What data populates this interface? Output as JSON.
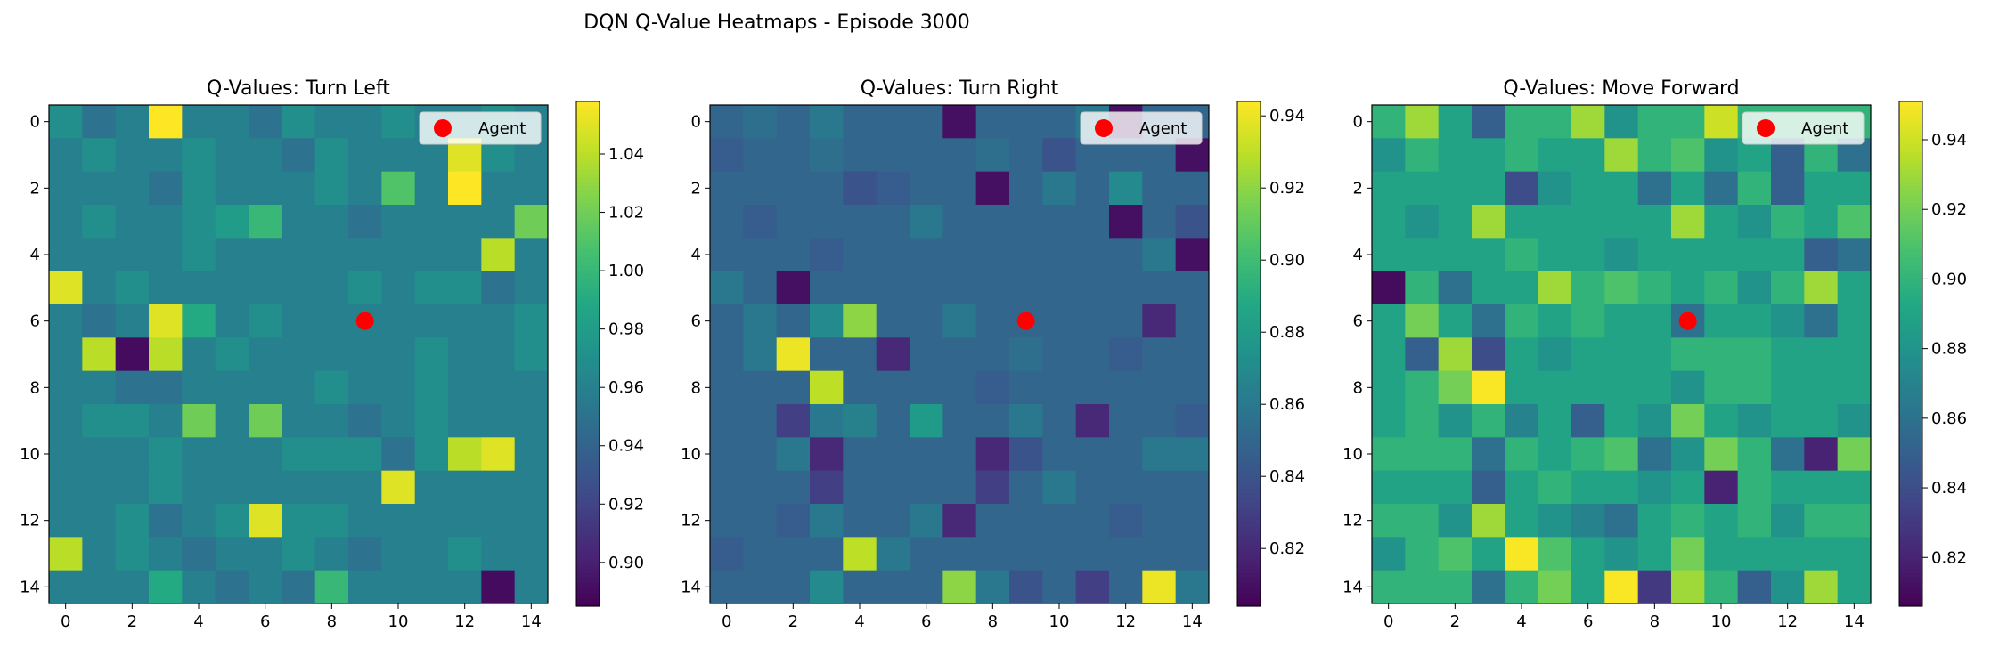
{
  "suptitle": "DQN Q-Value Heatmaps - Episode 3000",
  "chart_data": [
    {
      "type": "heatmap",
      "title": "Q-Values: Turn Left",
      "colormap": "viridis",
      "grid_size": 15,
      "x_ticks": [
        "0",
        "2",
        "4",
        "6",
        "8",
        "10",
        "12",
        "14"
      ],
      "y_ticks": [
        "0",
        "2",
        "4",
        "6",
        "8",
        "10",
        "12",
        "14"
      ],
      "vmin": 0.885,
      "vmax": 1.058,
      "colorbar_ticks": [
        "0.90",
        "0.92",
        "0.94",
        "0.96",
        "0.98",
        "1.00",
        "1.02",
        "1.04"
      ],
      "colorbar_tick_values": [
        0.9,
        0.92,
        0.94,
        0.96,
        0.98,
        1.0,
        1.02,
        1.04
      ],
      "grid": "off",
      "legend": {
        "label": "Agent",
        "placement": "upper right",
        "color": "#ff0000"
      },
      "agent": {
        "x": 9,
        "y": 6
      },
      "values": [
        [
          0.97,
          0.95,
          0.96,
          1.06,
          0.96,
          0.96,
          0.95,
          0.97,
          0.96,
          0.96,
          0.97,
          0.96,
          0.96,
          0.97,
          0.96
        ],
        [
          0.96,
          0.97,
          0.96,
          0.96,
          0.97,
          0.96,
          0.96,
          0.95,
          0.97,
          0.96,
          0.96,
          0.96,
          1.05,
          0.97,
          0.96
        ],
        [
          0.96,
          0.96,
          0.96,
          0.95,
          0.97,
          0.96,
          0.96,
          0.96,
          0.97,
          0.96,
          1.01,
          0.96,
          1.06,
          0.96,
          0.96
        ],
        [
          0.96,
          0.97,
          0.96,
          0.96,
          0.97,
          0.98,
          1.0,
          0.96,
          0.96,
          0.95,
          0.96,
          0.96,
          0.96,
          0.96,
          1.02
        ],
        [
          0.96,
          0.96,
          0.96,
          0.96,
          0.97,
          0.96,
          0.96,
          0.96,
          0.96,
          0.96,
          0.96,
          0.96,
          0.96,
          1.04,
          0.96
        ],
        [
          1.05,
          0.96,
          0.97,
          0.96,
          0.96,
          0.96,
          0.96,
          0.96,
          0.96,
          0.97,
          0.96,
          0.97,
          0.97,
          0.95,
          0.96
        ],
        [
          0.96,
          0.95,
          0.96,
          1.05,
          0.99,
          0.96,
          0.97,
          0.96,
          0.96,
          0.96,
          0.96,
          0.96,
          0.96,
          0.96,
          0.97
        ],
        [
          0.96,
          1.04,
          0.89,
          1.04,
          0.96,
          0.97,
          0.96,
          0.96,
          0.96,
          0.96,
          0.96,
          0.97,
          0.96,
          0.96,
          0.97
        ],
        [
          0.96,
          0.96,
          0.95,
          0.95,
          0.96,
          0.96,
          0.96,
          0.96,
          0.97,
          0.96,
          0.96,
          0.97,
          0.96,
          0.96,
          0.96
        ],
        [
          0.96,
          0.97,
          0.97,
          0.96,
          1.02,
          0.96,
          1.02,
          0.96,
          0.96,
          0.95,
          0.96,
          0.97,
          0.96,
          0.96,
          0.96
        ],
        [
          0.96,
          0.96,
          0.96,
          0.97,
          0.96,
          0.96,
          0.96,
          0.97,
          0.97,
          0.97,
          0.95,
          0.97,
          1.04,
          1.05,
          0.96
        ],
        [
          0.96,
          0.96,
          0.96,
          0.97,
          0.96,
          0.96,
          0.96,
          0.96,
          0.96,
          0.96,
          1.05,
          0.96,
          0.96,
          0.96,
          0.96
        ],
        [
          0.96,
          0.96,
          0.97,
          0.95,
          0.96,
          0.97,
          1.05,
          0.97,
          0.97,
          0.96,
          0.96,
          0.96,
          0.96,
          0.96,
          0.96
        ],
        [
          1.04,
          0.96,
          0.97,
          0.96,
          0.95,
          0.96,
          0.96,
          0.97,
          0.96,
          0.95,
          0.96,
          0.96,
          0.97,
          0.96,
          0.96
        ],
        [
          0.96,
          0.96,
          0.96,
          0.99,
          0.96,
          0.95,
          0.96,
          0.95,
          1.0,
          0.96,
          0.96,
          0.96,
          0.96,
          0.89,
          0.96
        ]
      ]
    },
    {
      "type": "heatmap",
      "title": "Q-Values: Turn Right",
      "colormap": "viridis",
      "grid_size": 15,
      "x_ticks": [
        "0",
        "2",
        "4",
        "6",
        "8",
        "10",
        "12",
        "14"
      ],
      "y_ticks": [
        "0",
        "2",
        "4",
        "6",
        "8",
        "10",
        "12",
        "14"
      ],
      "vmin": 0.804,
      "vmax": 0.944,
      "colorbar_ticks": [
        "0.82",
        "0.84",
        "0.86",
        "0.88",
        "0.90",
        "0.92",
        "0.94"
      ],
      "colorbar_tick_values": [
        0.82,
        0.84,
        0.86,
        0.88,
        0.9,
        0.92,
        0.94
      ],
      "grid": "off",
      "legend": {
        "label": "Agent",
        "placement": "upper right",
        "color": "#ff0000"
      },
      "agent": {
        "x": 9,
        "y": 6
      },
      "values": [
        [
          0.85,
          0.855,
          0.85,
          0.86,
          0.85,
          0.85,
          0.85,
          0.81,
          0.85,
          0.85,
          0.85,
          0.86,
          0.81,
          0.85,
          0.85
        ],
        [
          0.845,
          0.85,
          0.85,
          0.855,
          0.85,
          0.85,
          0.85,
          0.85,
          0.855,
          0.85,
          0.84,
          0.85,
          0.85,
          0.85,
          0.81
        ],
        [
          0.85,
          0.85,
          0.85,
          0.85,
          0.84,
          0.845,
          0.85,
          0.85,
          0.81,
          0.85,
          0.86,
          0.85,
          0.87,
          0.85,
          0.85
        ],
        [
          0.85,
          0.845,
          0.85,
          0.85,
          0.85,
          0.85,
          0.86,
          0.85,
          0.85,
          0.85,
          0.85,
          0.85,
          0.81,
          0.85,
          0.84
        ],
        [
          0.85,
          0.85,
          0.85,
          0.845,
          0.85,
          0.85,
          0.85,
          0.85,
          0.85,
          0.85,
          0.85,
          0.85,
          0.85,
          0.86,
          0.81
        ],
        [
          0.86,
          0.85,
          0.81,
          0.85,
          0.85,
          0.85,
          0.85,
          0.85,
          0.85,
          0.85,
          0.85,
          0.85,
          0.85,
          0.85,
          0.85
        ],
        [
          0.85,
          0.86,
          0.85,
          0.87,
          0.92,
          0.85,
          0.85,
          0.86,
          0.85,
          0.85,
          0.85,
          0.85,
          0.85,
          0.82,
          0.85
        ],
        [
          0.85,
          0.86,
          0.94,
          0.85,
          0.85,
          0.82,
          0.85,
          0.85,
          0.85,
          0.855,
          0.85,
          0.85,
          0.845,
          0.85,
          0.85
        ],
        [
          0.85,
          0.85,
          0.85,
          0.93,
          0.85,
          0.85,
          0.85,
          0.85,
          0.845,
          0.85,
          0.85,
          0.85,
          0.85,
          0.85,
          0.85
        ],
        [
          0.85,
          0.85,
          0.83,
          0.86,
          0.865,
          0.85,
          0.88,
          0.85,
          0.85,
          0.86,
          0.85,
          0.82,
          0.85,
          0.85,
          0.845
        ],
        [
          0.85,
          0.85,
          0.86,
          0.82,
          0.85,
          0.85,
          0.85,
          0.85,
          0.82,
          0.84,
          0.85,
          0.85,
          0.85,
          0.86,
          0.86
        ],
        [
          0.85,
          0.85,
          0.85,
          0.83,
          0.85,
          0.85,
          0.85,
          0.85,
          0.83,
          0.85,
          0.86,
          0.85,
          0.85,
          0.85,
          0.85
        ],
        [
          0.85,
          0.85,
          0.845,
          0.86,
          0.85,
          0.85,
          0.86,
          0.82,
          0.85,
          0.85,
          0.85,
          0.85,
          0.845,
          0.85,
          0.85
        ],
        [
          0.845,
          0.85,
          0.85,
          0.85,
          0.93,
          0.86,
          0.85,
          0.85,
          0.85,
          0.85,
          0.85,
          0.85,
          0.85,
          0.85,
          0.85
        ],
        [
          0.85,
          0.85,
          0.85,
          0.87,
          0.85,
          0.85,
          0.85,
          0.92,
          0.86,
          0.84,
          0.85,
          0.83,
          0.85,
          0.94,
          0.86
        ]
      ]
    },
    {
      "type": "heatmap",
      "title": "Q-Values: Move Forward",
      "colormap": "viridis",
      "grid_size": 15,
      "x_ticks": [
        "0",
        "2",
        "4",
        "6",
        "8",
        "10",
        "12",
        "14"
      ],
      "y_ticks": [
        "0",
        "2",
        "4",
        "6",
        "8",
        "10",
        "12",
        "14"
      ],
      "vmin": 0.806,
      "vmax": 0.951,
      "colorbar_ticks": [
        "0.82",
        "0.84",
        "0.86",
        "0.88",
        "0.90",
        "0.92",
        "0.94"
      ],
      "colorbar_tick_values": [
        0.82,
        0.84,
        0.86,
        0.88,
        0.9,
        0.92,
        0.94
      ],
      "grid": "off",
      "legend": {
        "label": "Agent",
        "placement": "upper right",
        "color": "#ff0000"
      },
      "agent": {
        "x": 9,
        "y": 6
      },
      "values": [
        [
          0.9,
          0.93,
          0.89,
          0.85,
          0.9,
          0.9,
          0.93,
          0.88,
          0.9,
          0.9,
          0.94,
          0.9,
          0.9,
          0.9,
          0.9
        ],
        [
          0.88,
          0.9,
          0.89,
          0.89,
          0.9,
          0.89,
          0.89,
          0.93,
          0.9,
          0.91,
          0.88,
          0.89,
          0.85,
          0.9,
          0.86
        ],
        [
          0.89,
          0.89,
          0.89,
          0.89,
          0.84,
          0.88,
          0.89,
          0.89,
          0.86,
          0.89,
          0.86,
          0.9,
          0.85,
          0.89,
          0.89
        ],
        [
          0.89,
          0.88,
          0.89,
          0.93,
          0.89,
          0.89,
          0.89,
          0.89,
          0.89,
          0.93,
          0.89,
          0.88,
          0.9,
          0.89,
          0.91
        ],
        [
          0.89,
          0.89,
          0.89,
          0.89,
          0.9,
          0.89,
          0.89,
          0.88,
          0.89,
          0.89,
          0.89,
          0.89,
          0.89,
          0.85,
          0.86
        ],
        [
          0.81,
          0.9,
          0.86,
          0.89,
          0.89,
          0.93,
          0.9,
          0.91,
          0.9,
          0.89,
          0.9,
          0.88,
          0.9,
          0.93,
          0.89
        ],
        [
          0.89,
          0.92,
          0.89,
          0.86,
          0.9,
          0.89,
          0.9,
          0.89,
          0.89,
          0.86,
          0.89,
          0.89,
          0.88,
          0.86,
          0.89
        ],
        [
          0.89,
          0.85,
          0.93,
          0.84,
          0.89,
          0.88,
          0.89,
          0.89,
          0.89,
          0.9,
          0.9,
          0.9,
          0.89,
          0.89,
          0.89
        ],
        [
          0.89,
          0.9,
          0.92,
          0.95,
          0.89,
          0.89,
          0.89,
          0.89,
          0.89,
          0.88,
          0.9,
          0.9,
          0.89,
          0.89,
          0.89
        ],
        [
          0.89,
          0.9,
          0.88,
          0.9,
          0.87,
          0.89,
          0.85,
          0.89,
          0.88,
          0.92,
          0.89,
          0.88,
          0.89,
          0.89,
          0.88
        ],
        [
          0.9,
          0.9,
          0.9,
          0.86,
          0.9,
          0.89,
          0.9,
          0.91,
          0.86,
          0.88,
          0.92,
          0.9,
          0.86,
          0.82,
          0.92
        ],
        [
          0.89,
          0.89,
          0.89,
          0.85,
          0.89,
          0.9,
          0.89,
          0.89,
          0.88,
          0.89,
          0.82,
          0.9,
          0.89,
          0.89,
          0.89
        ],
        [
          0.9,
          0.9,
          0.88,
          0.93,
          0.89,
          0.88,
          0.87,
          0.86,
          0.89,
          0.9,
          0.89,
          0.9,
          0.88,
          0.9,
          0.9
        ],
        [
          0.88,
          0.9,
          0.91,
          0.89,
          0.95,
          0.91,
          0.89,
          0.88,
          0.89,
          0.92,
          0.89,
          0.89,
          0.89,
          0.89,
          0.89
        ],
        [
          0.9,
          0.9,
          0.9,
          0.86,
          0.9,
          0.92,
          0.89,
          0.95,
          0.83,
          0.93,
          0.9,
          0.85,
          0.88,
          0.93,
          0.89
        ]
      ]
    }
  ]
}
